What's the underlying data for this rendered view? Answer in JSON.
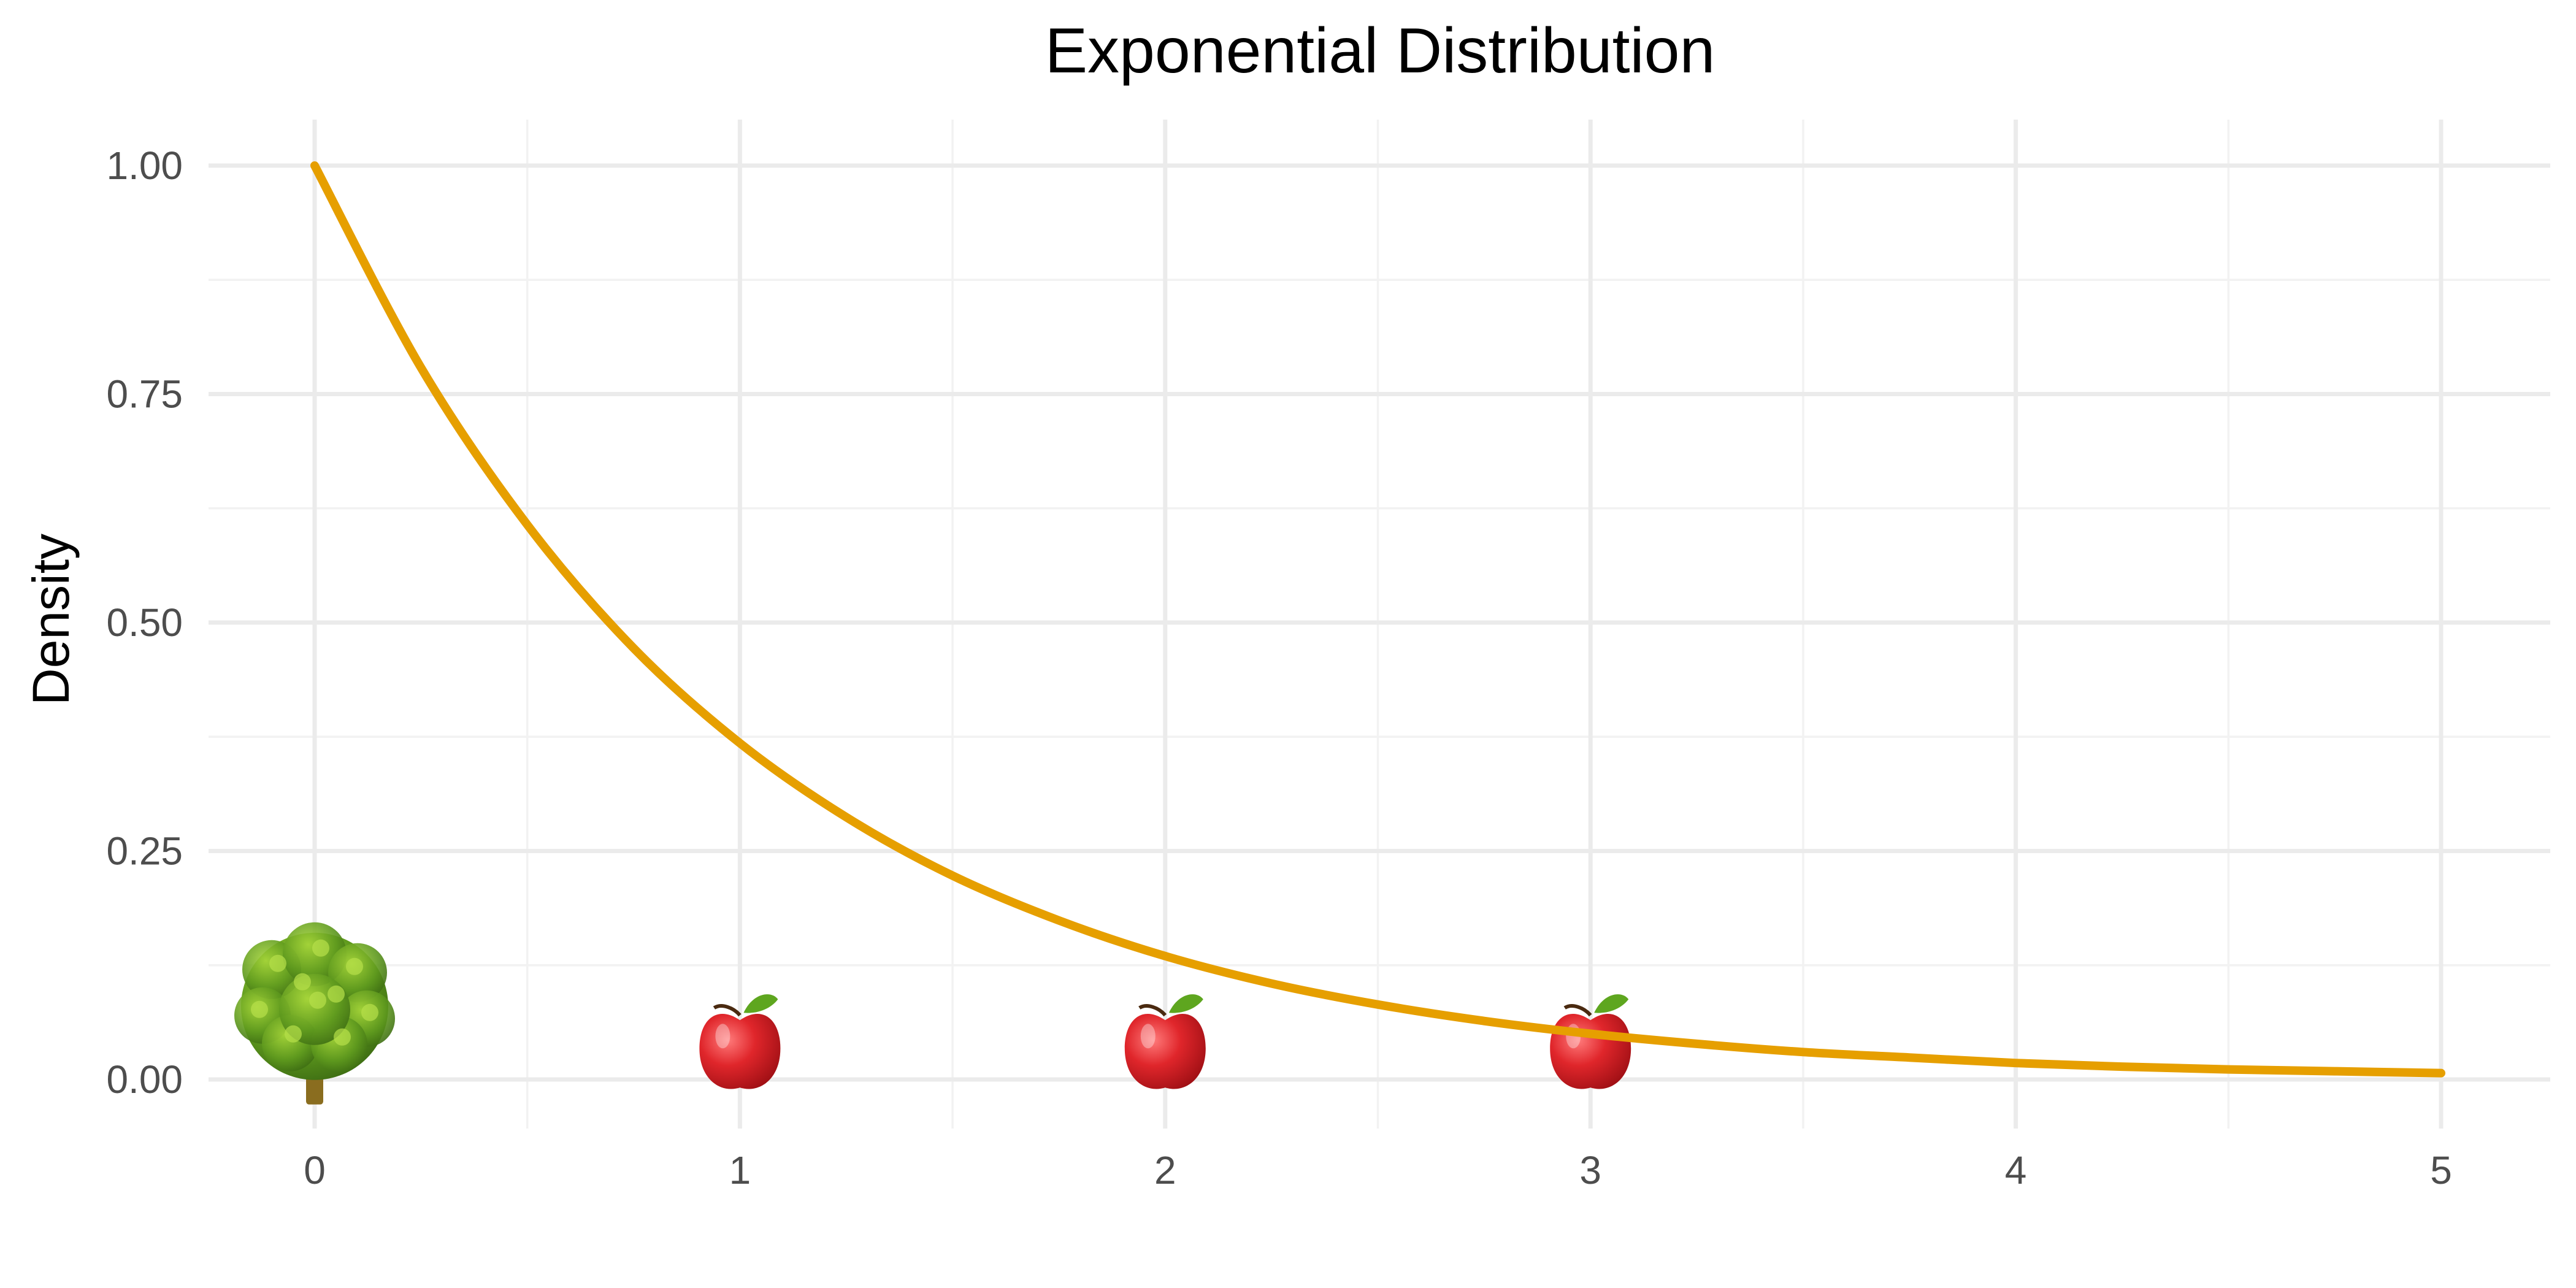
{
  "chart_data": {
    "type": "line",
    "title": "Exponential Distribution",
    "xlabel": "",
    "ylabel": "Density",
    "xlim": [
      0,
      5
    ],
    "ylim": [
      0,
      1
    ],
    "x_ticks": [
      "0",
      "1",
      "2",
      "3",
      "4",
      "5"
    ],
    "y_ticks": [
      "0.00",
      "0.25",
      "0.50",
      "0.75",
      "1.00"
    ],
    "grid": true,
    "legend": "none",
    "series": [
      {
        "color": "#E69F00",
        "x": [
          0,
          0.25,
          0.5,
          0.75,
          1,
          1.25,
          1.5,
          1.75,
          2,
          2.25,
          2.5,
          2.75,
          3,
          3.25,
          3.5,
          3.75,
          4,
          4.25,
          4.5,
          4.75,
          5
        ],
        "y": [
          1.0,
          0.779,
          0.607,
          0.472,
          0.368,
          0.287,
          0.223,
          0.174,
          0.135,
          0.105,
          0.082,
          0.064,
          0.05,
          0.039,
          0.03,
          0.024,
          0.018,
          0.014,
          0.011,
          0.009,
          0.007
        ]
      }
    ],
    "markers": [
      {
        "icon": "tree-icon",
        "x": 0,
        "y": 0.08
      },
      {
        "icon": "apple-icon",
        "x": 1,
        "y": 0.03
      },
      {
        "icon": "apple-icon",
        "x": 2,
        "y": 0.03
      },
      {
        "icon": "apple-icon",
        "x": 3,
        "y": 0.03
      }
    ]
  }
}
